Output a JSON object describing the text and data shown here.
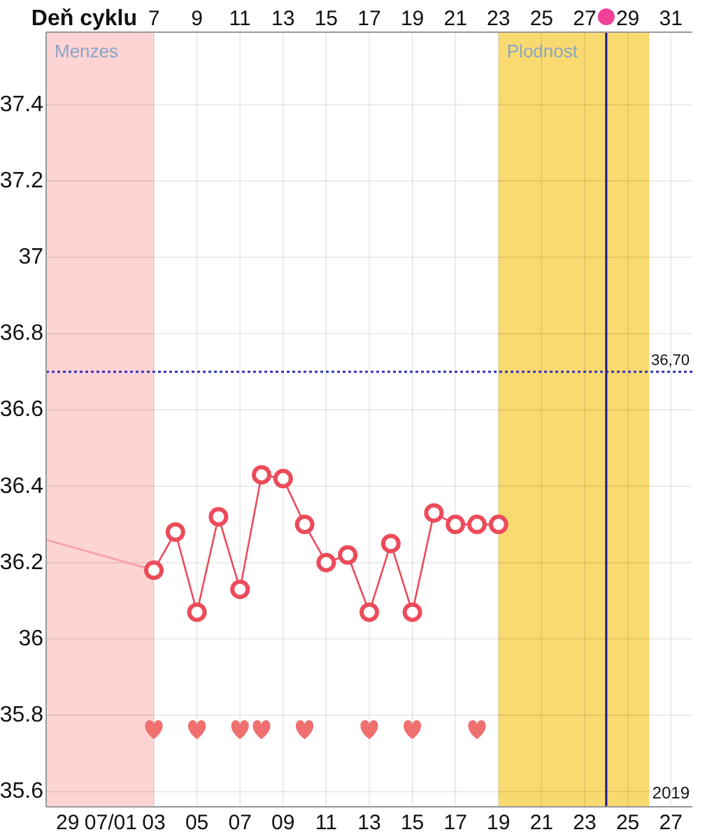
{
  "chart_data": {
    "type": "line",
    "x2label": "Deň cyklu",
    "xlim": [
      "2019-06-28",
      "2019-07-28"
    ],
    "xticks": [
      {
        "value": "2019-06-29",
        "label": "29"
      },
      {
        "value": "2019-07-01",
        "label": "07/01"
      },
      {
        "value": "2019-07-03",
        "label": "03"
      },
      {
        "value": "2019-07-05",
        "label": "05"
      },
      {
        "value": "2019-07-07",
        "label": "07"
      },
      {
        "value": "2019-07-09",
        "label": "09"
      },
      {
        "value": "2019-07-11",
        "label": "11"
      },
      {
        "value": "2019-07-13",
        "label": "13"
      },
      {
        "value": "2019-07-15",
        "label": "15"
      },
      {
        "value": "2019-07-17",
        "label": "17"
      },
      {
        "value": "2019-07-19",
        "label": "19"
      },
      {
        "value": "2019-07-21",
        "label": "21"
      },
      {
        "value": "2019-07-23",
        "label": "23"
      },
      {
        "value": "2019-07-25",
        "label": "25"
      },
      {
        "value": "2019-07-27",
        "label": "27"
      }
    ],
    "x2lim": [
      2,
      32
    ],
    "x2ticks": [
      7,
      9,
      11,
      13,
      15,
      17,
      19,
      21,
      23,
      25,
      27,
      29,
      31
    ],
    "ylim": [
      35.56,
      37.59
    ],
    "yticks": [
      35.6,
      35.8,
      36,
      36.2,
      36.4,
      36.6,
      36.8,
      37,
      37.2,
      37.4
    ],
    "grid": true,
    "series": [
      {
        "type": "line",
        "color": "#f4a0a6",
        "marker": "none",
        "x": [
          "2019-06-28",
          "2019-07-03"
        ],
        "values": [
          36.26,
          36.18
        ]
      },
      {
        "type": "line",
        "color": "#ec4b5a",
        "marker": "circle",
        "x": [
          "2019-07-03",
          "2019-07-04",
          "2019-07-05",
          "2019-07-06",
          "2019-07-07",
          "2019-07-08",
          "2019-07-09",
          "2019-07-10",
          "2019-07-11",
          "2019-07-12",
          "2019-07-13",
          "2019-07-14",
          "2019-07-15",
          "2019-07-16",
          "2019-07-17",
          "2019-07-18",
          "2019-07-19"
        ],
        "values": [
          36.18,
          36.28,
          36.07,
          36.32,
          36.13,
          36.43,
          36.42,
          36.3,
          36.2,
          36.22,
          36.07,
          36.25,
          36.07,
          36.33,
          36.3,
          36.3,
          36.3
        ]
      },
      {
        "type": "scatter",
        "color": "#f07070",
        "x": [
          "2019-07-03",
          "2019-07-05",
          "2019-07-07",
          "2019-07-08",
          "2019-07-10",
          "2019-07-13",
          "2019-07-15",
          "2019-07-18"
        ],
        "values": [
          35.76,
          35.76,
          35.76,
          35.76,
          35.76,
          35.76,
          35.76,
          35.76
        ]
      }
    ],
    "bands": [
      {
        "axis": "x",
        "from": "2019-06-28",
        "to": "2019-07-03",
        "label": "Menzes",
        "color": "#fdd3d3"
      },
      {
        "axis": "x",
        "from": "2019-07-19",
        "to": "2019-07-26",
        "label": "Plodnost",
        "color": "#f9da70"
      }
    ],
    "ref_lines": [
      {
        "axis": "y",
        "value": 36.7,
        "label": "36,70",
        "color": "#3030c0",
        "line_style": "dotted"
      },
      {
        "axis": "x",
        "value": "2019-07-24",
        "color": "#1a1a8c",
        "line_style": "solid"
      }
    ],
    "annotations": [
      "2019"
    ]
  }
}
